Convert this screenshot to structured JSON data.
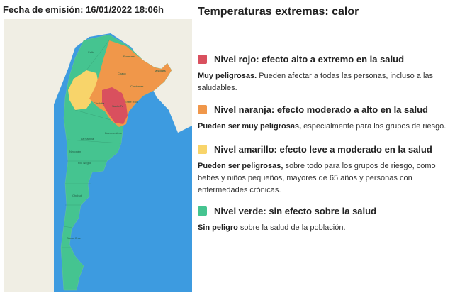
{
  "header": {
    "issued_label": "Fecha de emisión: 16/01/2022 18:06h"
  },
  "panel": {
    "title": "Temperaturas extremas: calor"
  },
  "levels": [
    {
      "color": "#d9505e",
      "title": "Nivel rojo: efecto alto a extremo en la salud",
      "desc_strong": "Muy peligrosas.",
      "desc_rest": " Pueden afectar a todas las personas, incluso a las saludables."
    },
    {
      "color": "#f0974a",
      "title": "Nivel naranja: efecto moderado a alto en la salud",
      "desc_strong": "Pueden ser muy peligrosas,",
      "desc_rest": " especialmente para los grupos de riesgo."
    },
    {
      "color": "#f8d46a",
      "title": "Nivel amarillo: efecto leve a moderado en la salud",
      "desc_strong": "Pueden ser peligrosas,",
      "desc_rest": " sobre todo para los grupos de riesgo, como bebés y niños pequeños, mayores de 65 años y personas con enfermedades crónicas."
    },
    {
      "color": "#45c490",
      "title": "Nivel verde: sin efecto sobre la salud",
      "desc_strong": "Sin peligro",
      "desc_rest": " sobre la salud de la población."
    }
  ],
  "map": {
    "ocean_color": "#3d9be0",
    "land_color": "#f0eee4",
    "place_labels": [
      "Salta",
      "Formosa",
      "Chaco",
      "Misiones",
      "Corrientes",
      "Córdoba",
      "Santa Fe",
      "Entre Ríos",
      "Buenos Aires",
      "La Pampa",
      "Neuquén",
      "Río Negro",
      "Chubut",
      "Santa Cruz"
    ]
  }
}
